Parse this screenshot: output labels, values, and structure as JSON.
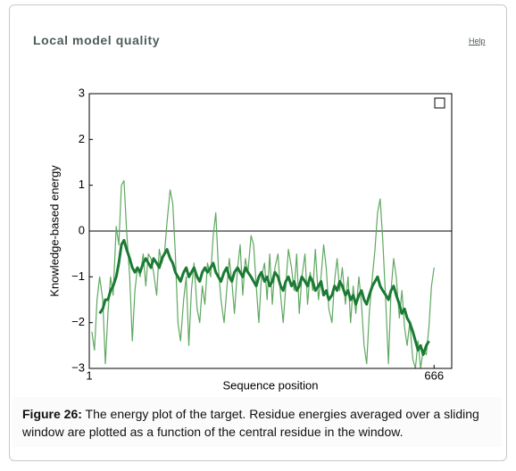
{
  "header": {
    "title": "Local model quality",
    "help": "Help"
  },
  "chart_data": {
    "type": "line",
    "y_label": "Knowledge-based energy",
    "x_label": "Sequence position",
    "x": [
      6,
      11,
      16,
      21,
      27,
      32,
      37,
      42,
      47,
      53,
      58,
      63,
      68,
      73,
      79,
      84,
      89,
      94,
      99,
      105,
      110,
      115,
      120,
      125,
      131,
      136,
      141,
      146,
      151,
      157,
      162,
      167,
      172,
      177,
      183,
      188,
      193,
      198,
      203,
      209,
      214,
      219,
      224,
      229,
      235,
      240,
      245,
      250,
      255,
      261,
      266,
      271,
      276,
      281,
      287,
      292,
      297,
      302,
      307,
      313,
      318,
      323,
      328,
      333,
      339,
      344,
      349,
      354,
      359,
      365,
      370,
      375,
      380,
      385,
      391,
      396,
      401,
      406,
      411,
      417,
      422,
      427,
      432,
      437,
      443,
      448,
      453,
      458,
      463,
      469,
      474,
      479,
      484,
      489,
      495,
      500,
      505,
      510,
      515,
      521,
      526,
      531,
      536,
      541,
      547,
      552,
      557,
      562,
      567,
      573,
      578,
      583,
      588,
      593,
      599,
      604,
      609,
      614,
      619,
      625,
      630,
      635,
      640,
      645,
      651,
      656,
      661,
      666
    ],
    "series": [
      {
        "color": "#5fa860",
        "width": 1.2,
        "values": [
          -2.2,
          -2.6,
          -1.5,
          -1.0,
          -1.5,
          -2.9,
          -1.8,
          -1.0,
          -1.4,
          0.1,
          -0.3,
          1.0,
          1.1,
          0.0,
          -1.0,
          -2.4,
          -1.3,
          -0.8,
          -1.0,
          -0.5,
          -1.2,
          -0.5,
          -0.6,
          -0.9,
          -1.4,
          -0.4,
          -0.7,
          -0.5,
          0.2,
          0.9,
          0.6,
          -0.5,
          -2.0,
          -2.4,
          -1.5,
          -1.0,
          -2.5,
          -1.3,
          -0.7,
          -1.7,
          -2.0,
          -1.2,
          -1.6,
          -0.7,
          -1.0,
          -0.1,
          0.4,
          -0.8,
          -1.5,
          -2.0,
          -1.3,
          -0.6,
          -1.1,
          -1.8,
          -0.8,
          -0.3,
          -1.4,
          -0.6,
          -0.9,
          -0.1,
          -0.3,
          -1.2,
          -2.0,
          -1.0,
          -0.7,
          -1.5,
          -0.5,
          -1.6,
          -0.8,
          -0.5,
          -1.4,
          -2.0,
          -1.2,
          -0.4,
          -0.8,
          -1.3,
          -0.5,
          -1.8,
          -1.0,
          -0.5,
          -1.6,
          -0.9,
          -1.3,
          -0.4,
          -1.5,
          -1.0,
          -0.3,
          -0.8,
          -1.7,
          -2.0,
          -1.1,
          -0.6,
          -1.3,
          -0.8,
          -1.6,
          -1.0,
          -2.0,
          -1.2,
          -1.8,
          -1.0,
          -1.6,
          -2.5,
          -2.9,
          -1.8,
          -1.0,
          -0.4,
          0.4,
          0.7,
          -0.2,
          -1.6,
          -2.9,
          -1.3,
          -0.6,
          -1.0,
          -1.9,
          -1.3,
          -2.1,
          -2.5,
          -2.0,
          -2.8,
          -3.0,
          -2.4,
          -3.0,
          -2.6,
          -2.7,
          -2.1,
          -1.2,
          -0.8
        ]
      },
      {
        "color": "#1b7a34",
        "width": 3,
        "values": [
          null,
          null,
          null,
          -1.8,
          -1.7,
          -1.5,
          -1.5,
          -1.3,
          -1.2,
          -1.0,
          -0.7,
          -0.3,
          -0.2,
          -0.4,
          -0.6,
          -0.8,
          -0.9,
          -0.8,
          -0.9,
          -0.7,
          -0.6,
          -0.7,
          -0.8,
          -0.6,
          -0.7,
          -0.8,
          -0.6,
          -0.5,
          -0.4,
          -0.6,
          -0.7,
          -0.9,
          -1.0,
          -1.1,
          -0.9,
          -0.8,
          -1.0,
          -0.9,
          -0.8,
          -1.0,
          -1.1,
          -0.9,
          -0.8,
          -0.9,
          -0.8,
          -0.7,
          -0.9,
          -1.0,
          -1.1,
          -0.9,
          -0.8,
          -1.0,
          -1.1,
          -0.9,
          -0.8,
          -0.9,
          -1.0,
          -0.8,
          -0.9,
          -1.0,
          -1.1,
          -1.2,
          -1.0,
          -0.9,
          -1.1,
          -1.0,
          -1.2,
          -1.1,
          -0.9,
          -1.0,
          -1.2,
          -1.3,
          -1.1,
          -1.0,
          -1.2,
          -1.1,
          -1.3,
          -1.2,
          -1.0,
          -1.1,
          -1.2,
          -1.0,
          -1.1,
          -1.3,
          -1.2,
          -1.1,
          -1.4,
          -1.3,
          -1.5,
          -1.4,
          -1.2,
          -1.3,
          -1.1,
          -1.2,
          -1.4,
          -1.3,
          -1.5,
          -1.4,
          -1.6,
          -1.4,
          -1.3,
          -1.5,
          -1.6,
          -1.4,
          -1.2,
          -1.1,
          -1.0,
          -1.2,
          -1.3,
          -1.4,
          -1.5,
          -1.3,
          -1.2,
          -1.4,
          -1.6,
          -1.8,
          -1.7,
          -1.9,
          -2.0,
          -2.2,
          -2.4,
          -2.6,
          -2.5,
          -2.7,
          -2.5,
          -2.4,
          null,
          null
        ]
      }
    ],
    "xlim": [
      1,
      700
    ],
    "xticks": [
      1,
      666
    ],
    "ylim": [
      -3,
      3
    ],
    "yticks": [
      {
        "value": -3,
        "label": "−3"
      },
      {
        "value": -2,
        "label": "−2"
      },
      {
        "value": -1,
        "label": "−1"
      },
      0,
      1,
      2,
      3
    ],
    "zero_line": true
  },
  "caption": {
    "label": "Figure 26:",
    "text": "The energy plot of the target. Residue energies averaged over a sliding window are plotted as a function of the central residue in the window."
  }
}
